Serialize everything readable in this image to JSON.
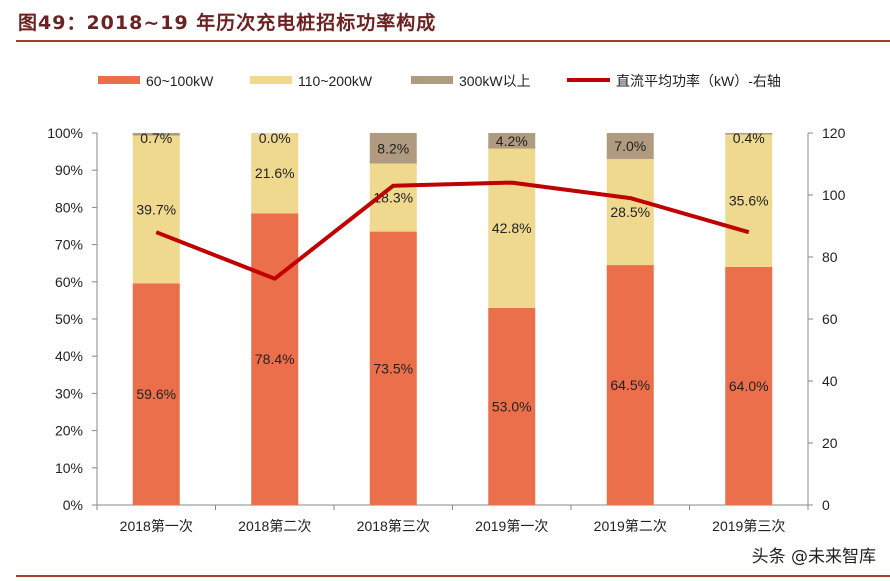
{
  "title": "图49：2018~19 年历次充电桩招标功率构成",
  "watermark": "头条 @未来智库",
  "colors": {
    "c1": "#ec6f4b",
    "c2": "#efd98f",
    "c3": "#b09b80",
    "line": "#c00000",
    "title": "#6b2222",
    "rule": "#a0412a"
  },
  "chart_data": {
    "type": "bar",
    "stacked": true,
    "categories": [
      "2018第一次",
      "2018第二次",
      "2018第三次",
      "2019第一次",
      "2019第二次",
      "2019第三次"
    ],
    "series": [
      {
        "name": "60~100kW",
        "type": "bar",
        "axis": "left",
        "values": [
          59.6,
          78.4,
          73.5,
          53.0,
          64.5,
          64.0
        ],
        "labels": [
          "59.6%",
          "78.4%",
          "73.5%",
          "53.0%",
          "64.5%",
          "64.0%"
        ]
      },
      {
        "name": "110~200kW",
        "type": "bar",
        "axis": "left",
        "values": [
          39.7,
          21.6,
          18.3,
          42.8,
          28.5,
          35.6
        ],
        "labels": [
          "39.7%",
          "21.6%",
          "18.3%",
          "42.8%",
          "28.5%",
          "35.6%"
        ]
      },
      {
        "name": "300kW以上",
        "type": "bar",
        "axis": "left",
        "values": [
          0.7,
          0.0,
          8.2,
          4.2,
          7.0,
          0.4
        ],
        "labels": [
          "0.7%",
          "0.0%",
          "8.2%",
          "4.2%",
          "7.0%",
          "0.4%"
        ]
      },
      {
        "name": "直流平均功率（kW）-右轴",
        "type": "line",
        "axis": "right",
        "values": [
          88,
          73,
          103,
          104,
          99,
          88
        ]
      }
    ],
    "left_axis": {
      "ylim": [
        0,
        100
      ],
      "ticks": [
        "0%",
        "10%",
        "20%",
        "30%",
        "40%",
        "50%",
        "60%",
        "70%",
        "80%",
        "90%",
        "100%"
      ]
    },
    "right_axis": {
      "ylim": [
        0,
        120
      ],
      "ticks": [
        "0",
        "20",
        "40",
        "60",
        "80",
        "100",
        "120"
      ]
    },
    "legend": "top",
    "grid": false
  }
}
